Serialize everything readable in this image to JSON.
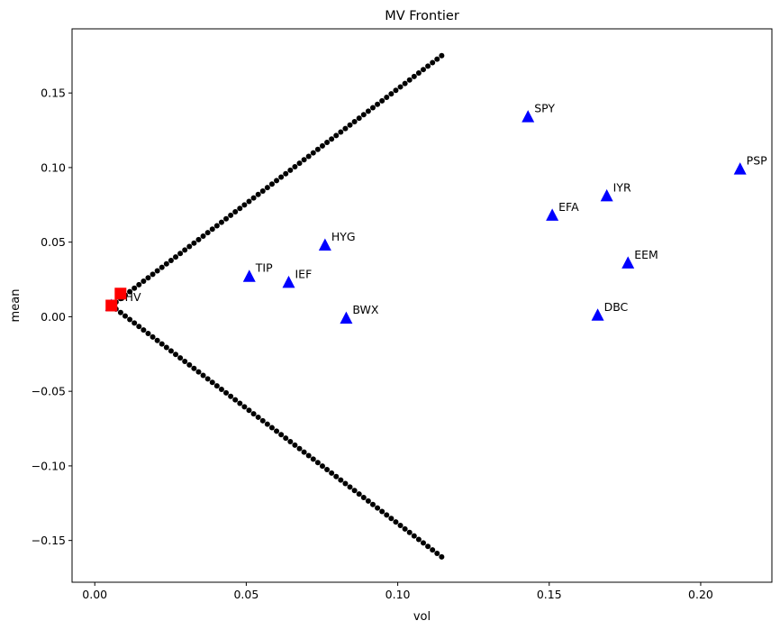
{
  "chart_data": {
    "type": "scatter",
    "title": "MV Frontier",
    "xlabel": "vol",
    "ylabel": "mean",
    "xlim": [
      -0.0075,
      0.2235
    ],
    "ylim": [
      -0.178,
      0.193
    ],
    "x_ticks": [
      0.0,
      0.05,
      0.1,
      0.15,
      0.2
    ],
    "x_tick_labels": [
      "0.00",
      "0.05",
      "0.10",
      "0.15",
      "0.20"
    ],
    "y_ticks": [
      -0.15,
      -0.1,
      -0.05,
      0.0,
      0.05,
      0.1,
      0.15
    ],
    "y_tick_labels": [
      "−0.15",
      "−0.10",
      "−0.05",
      "0.00",
      "0.05",
      "0.10",
      "0.15"
    ],
    "grid": false,
    "frontier": {
      "color": "#000000",
      "marker": "circle",
      "apex": {
        "vol": 0.0055,
        "mean": 0.0075
      },
      "top_end": {
        "vol": 0.1145,
        "mean": 0.175
      },
      "bottom_end": {
        "vol": 0.1145,
        "mean": -0.161
      },
      "points_per_branch": 72
    },
    "assets": [
      {
        "name": "SPY",
        "vol": 0.143,
        "mean": 0.134
      },
      {
        "name": "PSP",
        "vol": 0.213,
        "mean": 0.099
      },
      {
        "name": "IYR",
        "vol": 0.169,
        "mean": 0.081
      },
      {
        "name": "EFA",
        "vol": 0.151,
        "mean": 0.068
      },
      {
        "name": "HYG",
        "vol": 0.076,
        "mean": 0.048
      },
      {
        "name": "EEM",
        "vol": 0.176,
        "mean": 0.036
      },
      {
        "name": "TIP",
        "vol": 0.051,
        "mean": 0.027
      },
      {
        "name": "IEF",
        "vol": 0.064,
        "mean": 0.023
      },
      {
        "name": "DBC",
        "vol": 0.166,
        "mean": 0.001
      },
      {
        "name": "BWX",
        "vol": 0.083,
        "mean": -0.001
      },
      {
        "name": "SHV",
        "vol": 0.0055,
        "mean": 0.0075
      }
    ],
    "asset_color": "#0000ff",
    "special_points": [
      {
        "vol": 0.0055,
        "mean": 0.0075
      },
      {
        "vol": 0.0085,
        "mean": 0.0155
      }
    ],
    "special_color": "#ff0000"
  }
}
